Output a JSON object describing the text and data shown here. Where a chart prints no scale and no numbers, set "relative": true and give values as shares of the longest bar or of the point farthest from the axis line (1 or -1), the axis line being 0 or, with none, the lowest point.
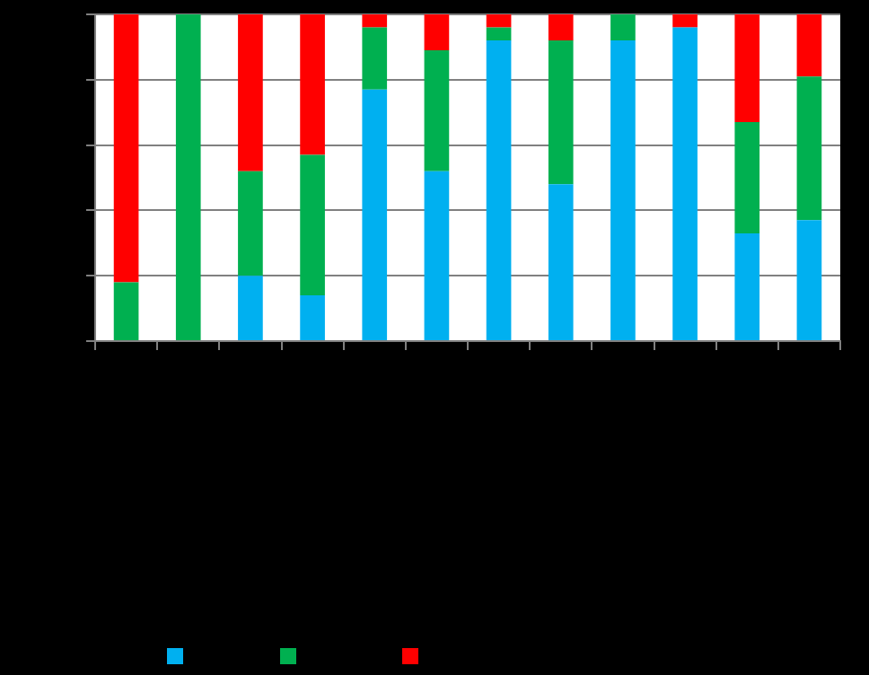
{
  "chart_data": {
    "type": "bar",
    "stacked": true,
    "relative": true,
    "grid": "y",
    "categories": [
      null,
      null,
      null,
      null,
      null,
      null,
      null,
      null,
      null,
      null,
      null,
      null
    ],
    "series": [
      {
        "color": "#00b0f0",
        "values": [
          0,
          0,
          0.2,
          0.14,
          0.77,
          0.52,
          0.92,
          0.48,
          0.92,
          0.96,
          0.33,
          0.37
        ]
      },
      {
        "color": "#00b050",
        "values": [
          0.18,
          1,
          0.32,
          0.43,
          0.19,
          0.37,
          0.04,
          0.44,
          0.08,
          0,
          0.34,
          0.44
        ]
      },
      {
        "color": "#ff0000",
        "values": [
          0.82,
          0,
          0.48,
          0.43,
          0.04,
          0.11,
          0.04,
          0.08,
          0,
          0.04,
          0.33,
          0.19
        ]
      }
    ]
  }
}
